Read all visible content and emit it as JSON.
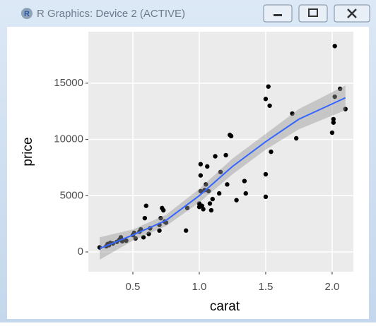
{
  "window": {
    "title": "R Graphics: Device 2 (ACTIVE)"
  },
  "chart_data": {
    "type": "scatter",
    "xlabel": "carat",
    "ylabel": "price",
    "x": [
      0.25,
      0.3,
      0.31,
      0.32,
      0.33,
      0.35,
      0.38,
      0.4,
      0.41,
      0.42,
      0.45,
      0.5,
      0.51,
      0.52,
      0.55,
      0.56,
      0.58,
      0.59,
      0.6,
      0.62,
      0.63,
      0.7,
      0.7,
      0.71,
      0.72,
      0.73,
      0.74,
      0.75,
      0.9,
      0.91,
      1.0,
      1.0,
      1.01,
      1.01,
      1.01,
      1.02,
      1.03,
      1.04,
      1.05,
      1.06,
      1.07,
      1.08,
      1.09,
      1.1,
      1.12,
      1.15,
      1.16,
      1.2,
      1.21,
      1.23,
      1.24,
      1.28,
      1.34,
      1.35,
      1.5,
      1.5,
      1.5,
      1.52,
      1.53,
      1.54,
      1.7,
      1.73,
      2.0,
      2.01,
      2.01,
      2.02,
      2.02,
      2.06,
      2.1
    ],
    "y": [
      400,
      500,
      700,
      600,
      800,
      750,
      900,
      1100,
      1300,
      950,
      1000,
      1500,
      1700,
      1200,
      1800,
      2000,
      1300,
      3000,
      4100,
      1600,
      2100,
      1900,
      2400,
      3000,
      3900,
      3700,
      2700,
      2600,
      1900,
      3900,
      4000,
      4300,
      5400,
      6800,
      7800,
      4100,
      3800,
      5500,
      6000,
      7600,
      5400,
      4300,
      3700,
      4700,
      8500,
      5200,
      7100,
      8600,
      6000,
      10400,
      10300,
      4600,
      6300,
      5200,
      4900,
      6900,
      13600,
      14700,
      13000,
      8900,
      12300,
      10100,
      10600,
      11500,
      11800,
      13800,
      18300,
      14500,
      12700
    ],
    "color": "#000000",
    "smooth": {
      "x": [
        0.25,
        0.5,
        0.75,
        1.0,
        1.25,
        1.5,
        1.75,
        2.1
      ],
      "y": [
        300,
        1500,
        2800,
        5000,
        7600,
        9800,
        11800,
        13700
      ],
      "lower": [
        -700,
        1000,
        2300,
        4400,
        6900,
        9100,
        10900,
        12600
      ],
      "upper": [
        1300,
        2000,
        3300,
        5600,
        8300,
        10500,
        12700,
        14800
      ],
      "color": "#3366ff",
      "band_color": "#999999"
    },
    "xlim": [
      0.165,
      2.16
    ],
    "ylim": [
      -1757,
      19573
    ],
    "xticks": [
      0.5,
      {
        "value": 1,
        "label": "1.0"
      },
      1.5,
      {
        "value": 2,
        "label": "2.0"
      }
    ],
    "yticks": [
      0,
      5000,
      10000,
      15000
    ],
    "grid": true
  }
}
